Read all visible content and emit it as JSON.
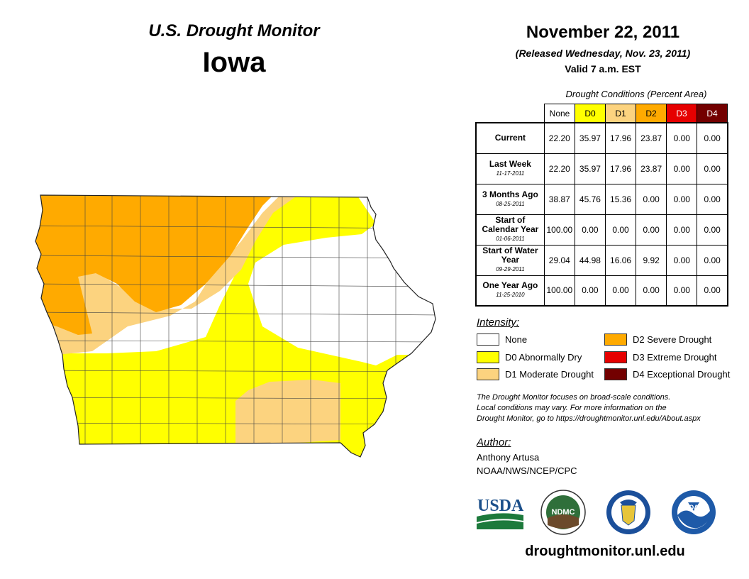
{
  "header": {
    "title": "U.S. Drought Monitor",
    "state": "Iowa"
  },
  "date": {
    "main": "November 22, 2011",
    "released": "(Released Wednesday, Nov. 23, 2011)",
    "valid": "Valid 7 a.m. EST"
  },
  "table": {
    "caption": "Drought Conditions (Percent Area)",
    "columns": [
      "None",
      "D0",
      "D1",
      "D2",
      "D3",
      "D4"
    ],
    "column_colors": [
      "#ffffff",
      "#ffff00",
      "#fcd37f",
      "#ffaa00",
      "#e60000",
      "#730000"
    ],
    "rows": [
      {
        "label": "Current",
        "sub": "",
        "values": [
          "22.20",
          "35.97",
          "17.96",
          "23.87",
          "0.00",
          "0.00"
        ]
      },
      {
        "label": "Last Week",
        "sub": "11-17-2011",
        "values": [
          "22.20",
          "35.97",
          "17.96",
          "23.87",
          "0.00",
          "0.00"
        ]
      },
      {
        "label": "3 Months Ago",
        "sub": "08-25-2011",
        "values": [
          "38.87",
          "45.76",
          "15.36",
          "0.00",
          "0.00",
          "0.00"
        ]
      },
      {
        "label": "Start of Calendar Year",
        "sub": "01-06-2011",
        "values": [
          "100.00",
          "0.00",
          "0.00",
          "0.00",
          "0.00",
          "0.00"
        ]
      },
      {
        "label": "Start of Water Year",
        "sub": "09-29-2011",
        "values": [
          "29.04",
          "44.98",
          "16.06",
          "9.92",
          "0.00",
          "0.00"
        ]
      },
      {
        "label": "One Year Ago",
        "sub": "11-25-2010",
        "values": [
          "100.00",
          "0.00",
          "0.00",
          "0.00",
          "0.00",
          "0.00"
        ]
      }
    ]
  },
  "legend": {
    "title": "Intensity:",
    "items": [
      {
        "label": "None",
        "color": "#ffffff"
      },
      {
        "label": "D0 Abnormally Dry",
        "color": "#ffff00"
      },
      {
        "label": "D1 Moderate Drought",
        "color": "#fcd37f"
      },
      {
        "label": "D2 Severe Drought",
        "color": "#ffaa00"
      },
      {
        "label": "D3 Extreme Drought",
        "color": "#e60000"
      },
      {
        "label": "D4 Exceptional Drought",
        "color": "#730000"
      }
    ]
  },
  "note": {
    "line1": "The Drought Monitor focuses on broad-scale conditions.",
    "line2": "Local conditions may vary. For more information on the",
    "line3": "Drought Monitor, go to https://droughtmonitor.unl.edu/About.aspx"
  },
  "author": {
    "heading": "Author:",
    "name": "Anthony Artusa",
    "org": "NOAA/NWS/NCEP/CPC"
  },
  "logos": {
    "usda": "USDA",
    "ndmc": "NDMC",
    "noaa": "NOAA"
  },
  "footer": {
    "url": "droughtmonitor.unl.edu"
  }
}
